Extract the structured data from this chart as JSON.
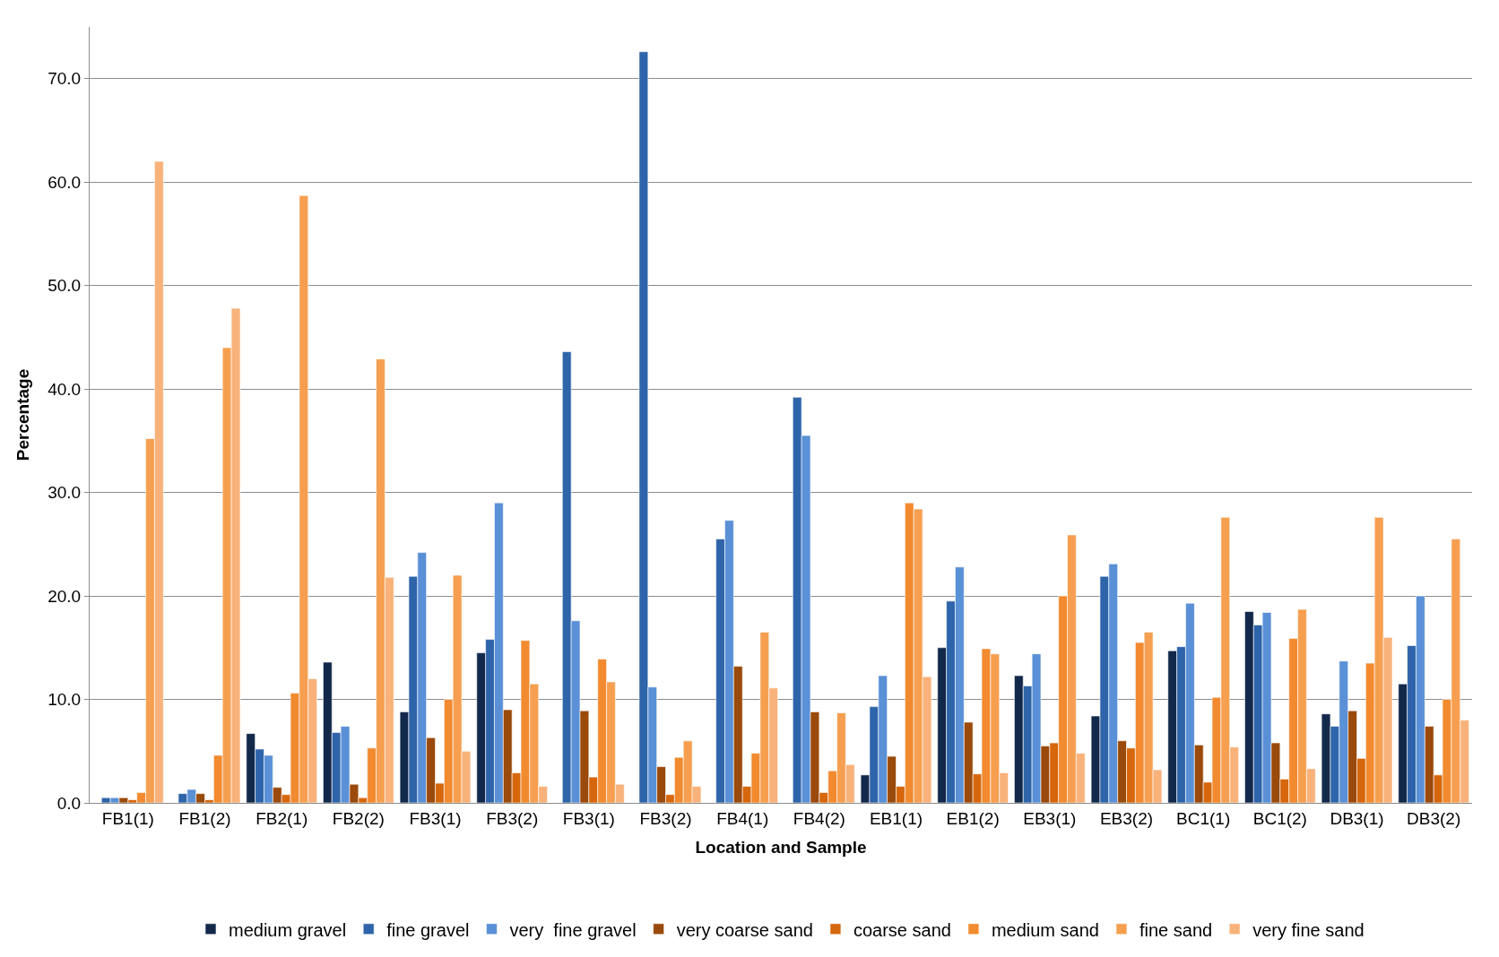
{
  "chart_data": {
    "type": "bar",
    "xlabel": "Location and Sample",
    "ylabel": "Percentage",
    "categories": [
      "FB1(1)",
      "FB1(2)",
      "FB2(1)",
      "FB2(2)",
      "FB3(1)",
      "FB3(2)",
      "FB3(1)",
      "FB3(2)",
      "FB4(1)",
      "FB4(2)",
      "EB1(1)",
      "EB1(2)",
      "EB3(1)",
      "EB3(2)",
      "BC1(1)",
      "BC1(2)",
      "DB3(1)",
      "DB3(2)"
    ],
    "series": [
      {
        "name": "medium gravel",
        "color": "#13294b",
        "values": [
          null,
          null,
          6.7,
          13.6,
          8.8,
          14.5,
          null,
          null,
          null,
          null,
          2.7,
          15.0,
          12.3,
          8.4,
          14.7,
          18.5,
          8.6,
          11.5
        ]
      },
      {
        "name": "fine gravel",
        "color": "#2e64a9",
        "values": [
          0.5,
          0.9,
          5.2,
          6.8,
          21.9,
          15.8,
          43.6,
          72.6,
          25.5,
          39.2,
          9.3,
          19.5,
          11.3,
          21.9,
          15.1,
          17.2,
          7.4,
          15.2
        ]
      },
      {
        "name": "very  fine gravel",
        "color": "#5a90d6",
        "values": [
          0.5,
          1.3,
          4.6,
          7.4,
          24.2,
          29.0,
          17.6,
          11.2,
          27.3,
          35.5,
          12.3,
          22.8,
          14.4,
          23.1,
          19.3,
          18.4,
          13.7,
          20.0
        ]
      },
      {
        "name": "very coarse sand",
        "color": "#9a4a0a",
        "values": [
          0.5,
          0.9,
          1.5,
          1.8,
          6.3,
          9.0,
          8.9,
          3.5,
          13.2,
          8.8,
          4.5,
          7.8,
          5.5,
          6.0,
          5.6,
          5.8,
          8.9,
          7.4
        ]
      },
      {
        "name": "coarse sand",
        "color": "#d6670d",
        "values": [
          0.3,
          0.3,
          0.8,
          0.5,
          1.9,
          2.9,
          2.5,
          0.8,
          1.6,
          1.0,
          1.6,
          2.8,
          5.8,
          5.3,
          2.0,
          2.3,
          4.3,
          2.7
        ]
      },
      {
        "name": "medium sand",
        "color": "#f28a30",
        "values": [
          1.0,
          4.6,
          10.6,
          5.3,
          10.0,
          15.7,
          13.9,
          4.4,
          4.8,
          3.1,
          29.0,
          14.9,
          20.0,
          15.5,
          10.2,
          15.9,
          13.5,
          10.0
        ]
      },
      {
        "name": "fine sand",
        "color": "#f69f50",
        "values": [
          35.2,
          44.0,
          58.7,
          42.9,
          22.0,
          11.5,
          11.7,
          6.0,
          16.5,
          8.7,
          28.4,
          14.4,
          25.9,
          16.5,
          27.6,
          18.7,
          27.6,
          25.5
        ]
      },
      {
        "name": "very fine sand",
        "color": "#f8b27a",
        "values": [
          62.0,
          47.8,
          12.0,
          21.8,
          5.0,
          1.6,
          1.8,
          1.6,
          11.1,
          3.7,
          12.2,
          2.9,
          4.8,
          3.2,
          5.4,
          3.3,
          16.0,
          8.0
        ]
      }
    ],
    "ylim": [
      0,
      75
    ],
    "yticks": [
      {
        "value": 0,
        "label": "0.0"
      },
      {
        "value": 10,
        "label": "10.0"
      },
      {
        "value": 20,
        "label": "20.0"
      },
      {
        "value": 30,
        "label": "30.0"
      },
      {
        "value": 40,
        "label": "40.0"
      },
      {
        "value": 50,
        "label": "50.0"
      },
      {
        "value": 60,
        "label": "60.0"
      },
      {
        "value": 70,
        "label": "70.0"
      }
    ],
    "grid": "y",
    "legend": "bottom"
  }
}
